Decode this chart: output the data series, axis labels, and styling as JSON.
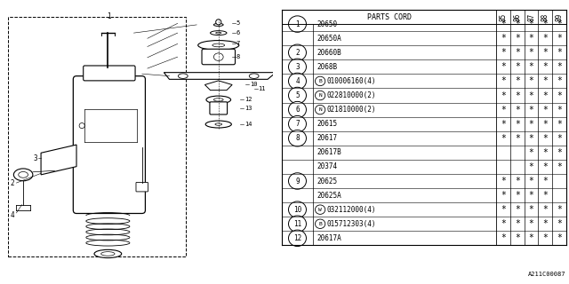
{
  "rows": [
    {
      "ref": "1",
      "part": "20650",
      "cols": [
        "*",
        "*",
        "*",
        "*",
        "*"
      ],
      "prefix": ""
    },
    {
      "ref": "",
      "part": "20650A",
      "cols": [
        "*",
        "*",
        "*",
        "*",
        "*"
      ],
      "prefix": ""
    },
    {
      "ref": "2",
      "part": "20660B",
      "cols": [
        "*",
        "*",
        "*",
        "*",
        "*"
      ],
      "prefix": ""
    },
    {
      "ref": "3",
      "part": "2068B",
      "cols": [
        "*",
        "*",
        "*",
        "*",
        "*"
      ],
      "prefix": ""
    },
    {
      "ref": "4",
      "part": "010006160(4)",
      "cols": [
        "*",
        "*",
        "*",
        "*",
        "*"
      ],
      "prefix": "B"
    },
    {
      "ref": "5",
      "part": "022810000(2)",
      "cols": [
        "*",
        "*",
        "*",
        "*",
        "*"
      ],
      "prefix": "N"
    },
    {
      "ref": "6",
      "part": "021810000(2)",
      "cols": [
        "*",
        "*",
        "*",
        "*",
        "*"
      ],
      "prefix": "N"
    },
    {
      "ref": "7",
      "part": "20615",
      "cols": [
        "*",
        "*",
        "*",
        "*",
        "*"
      ],
      "prefix": ""
    },
    {
      "ref": "8",
      "part": "20617",
      "cols": [
        "*",
        "*",
        "*",
        "*",
        "*"
      ],
      "prefix": ""
    },
    {
      "ref": "",
      "part": "20617B",
      "cols": [
        "",
        "",
        "*",
        "*",
        "*"
      ],
      "prefix": ""
    },
    {
      "ref": "",
      "part": "20374",
      "cols": [
        "",
        "",
        "*",
        "*",
        "*"
      ],
      "prefix": ""
    },
    {
      "ref": "9",
      "part": "20625",
      "cols": [
        "*",
        "*",
        "*",
        "*",
        ""
      ],
      "prefix": ""
    },
    {
      "ref": "",
      "part": "20625A",
      "cols": [
        "*",
        "*",
        "*",
        "*",
        ""
      ],
      "prefix": ""
    },
    {
      "ref": "10",
      "part": "032112000(4)",
      "cols": [
        "*",
        "*",
        "*",
        "*",
        "*"
      ],
      "prefix": "W"
    },
    {
      "ref": "11",
      "part": "015712303(4)",
      "cols": [
        "*",
        "*",
        "*",
        "*",
        "*"
      ],
      "prefix": "B"
    },
    {
      "ref": "12",
      "part": "20617A",
      "cols": [
        "*",
        "*",
        "*",
        "*",
        "*"
      ],
      "prefix": ""
    }
  ],
  "years": [
    "85",
    "86",
    "87",
    "88",
    "89"
  ],
  "footer": "A211C00087",
  "bg_color": "#ffffff"
}
